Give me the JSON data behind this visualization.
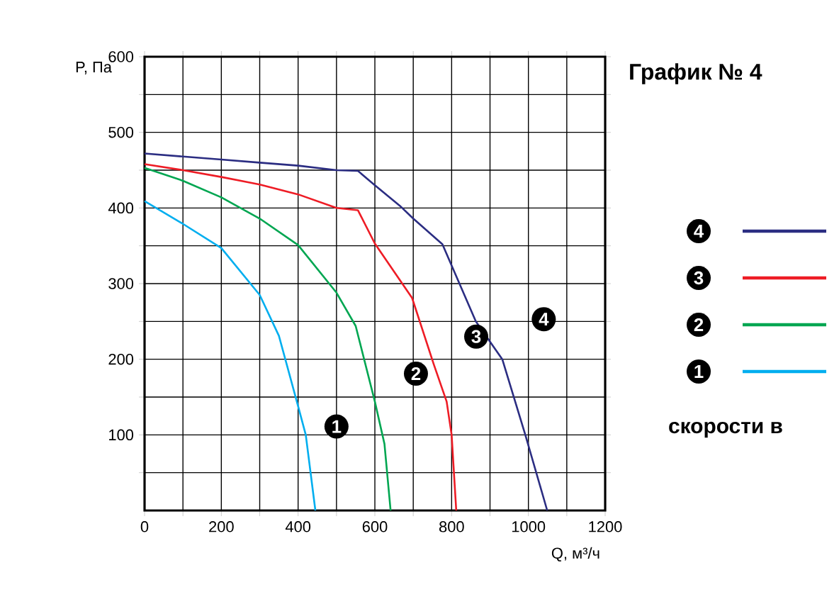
{
  "chart_data": {
    "type": "line",
    "title": "График № 4",
    "xlabel": "Q, м³/ч",
    "ylabel": "P, Па",
    "legend_title": "скорости в",
    "legend": "right",
    "grid": true,
    "marker": "none",
    "line_style": "solid",
    "xlim": [
      0,
      1200
    ],
    "ylim": [
      0,
      600
    ],
    "xticks": [
      0,
      {
        "value": 100,
        "label": null
      },
      200,
      {
        "value": 300,
        "label": null
      },
      400,
      {
        "value": 500,
        "label": null
      },
      600,
      {
        "value": 700,
        "label": null
      },
      800,
      {
        "value": 900,
        "label": null
      },
      1000,
      {
        "value": 1100,
        "label": null
      },
      1200
    ],
    "yticks": [
      {
        "value": 50,
        "label": null
      },
      100,
      {
        "value": 150,
        "label": null
      },
      200,
      {
        "value": 250,
        "label": null
      },
      300,
      {
        "value": 350,
        "label": null
      },
      400,
      {
        "value": 450,
        "label": null
      },
      500,
      {
        "value": 550,
        "label": null
      },
      600
    ],
    "series": [
      {
        "name": "4",
        "color": "#2b2d82",
        "x": [
          0,
          100,
          200,
          300,
          400,
          500,
          556,
          600,
          665,
          700,
          776,
          863,
          932,
          992,
          1049
        ],
        "values": [
          472,
          468,
          464,
          460,
          456,
          450,
          449,
          430,
          403,
          386,
          352,
          250,
          200,
          100,
          0
        ]
      },
      {
        "name": "3",
        "color": "#ee1c25",
        "x": [
          0,
          100,
          200,
          300,
          400,
          500,
          556,
          600,
          697,
          753,
          787,
          800,
          812
        ],
        "values": [
          458,
          450,
          441,
          431,
          418,
          400,
          397,
          353,
          281,
          194,
          144,
          100,
          0
        ]
      },
      {
        "name": "2",
        "color": "#00a651",
        "x": [
          0,
          100,
          200,
          300,
          400,
          500,
          550,
          600,
          625,
          641
        ],
        "values": [
          453,
          436,
          414,
          386,
          351,
          288,
          244,
          144,
          88,
          0
        ]
      },
      {
        "name": "1",
        "color": "#00aeef",
        "x": [
          0,
          100,
          200,
          300,
          350,
          400,
          420,
          445
        ],
        "values": [
          409,
          379,
          347,
          285,
          231,
          138,
          100,
          0
        ]
      }
    ],
    "annotations": [
      {
        "text": "1",
        "x": 500,
        "y": 111
      },
      {
        "text": "2",
        "x": 707,
        "y": 181
      },
      {
        "text": "3",
        "x": 864,
        "y": 230
      },
      {
        "text": "4",
        "x": 1040,
        "y": 253
      }
    ]
  }
}
